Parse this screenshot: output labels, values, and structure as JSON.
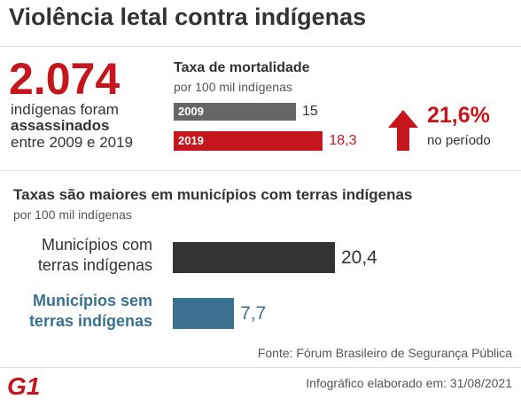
{
  "title": "Violência letal contra indígenas",
  "highlight": {
    "number": "2.074",
    "line1": "indígenas foram",
    "line2": "assassinados",
    "line3": "entre 2009 e 2019"
  },
  "change": {
    "value": "21,6%",
    "note": "no período"
  },
  "source": "Fonte: Fórum Brasileiro de Segurança Pública",
  "logo": "G1",
  "credit": "Infográfico elaborado em: 31/08/2021",
  "chart_data": [
    {
      "type": "bar",
      "title": "Taxa de mortalidade",
      "subtitle": "por 100 mil indígenas",
      "categories": [
        "2009",
        "2019"
      ],
      "values": [
        15,
        18.3
      ],
      "value_labels": [
        "15",
        "18,3"
      ],
      "colors": [
        "#666666",
        "#c4161c"
      ],
      "label_colors": [
        "#333333",
        "#c4161c"
      ]
    },
    {
      "type": "bar",
      "title": "Taxas são maiores em municípios com terras indígenas",
      "subtitle": "por 100 mil indígenas",
      "categories": [
        "Municípios com terras indígenas",
        "Municípios sem terras indígenas"
      ],
      "values": [
        20.4,
        7.7
      ],
      "value_labels": [
        "20,4",
        "7,7"
      ],
      "colors": [
        "#333333",
        "#3a7191"
      ],
      "label_colors": [
        "#333333",
        "#3a7191"
      ]
    }
  ]
}
